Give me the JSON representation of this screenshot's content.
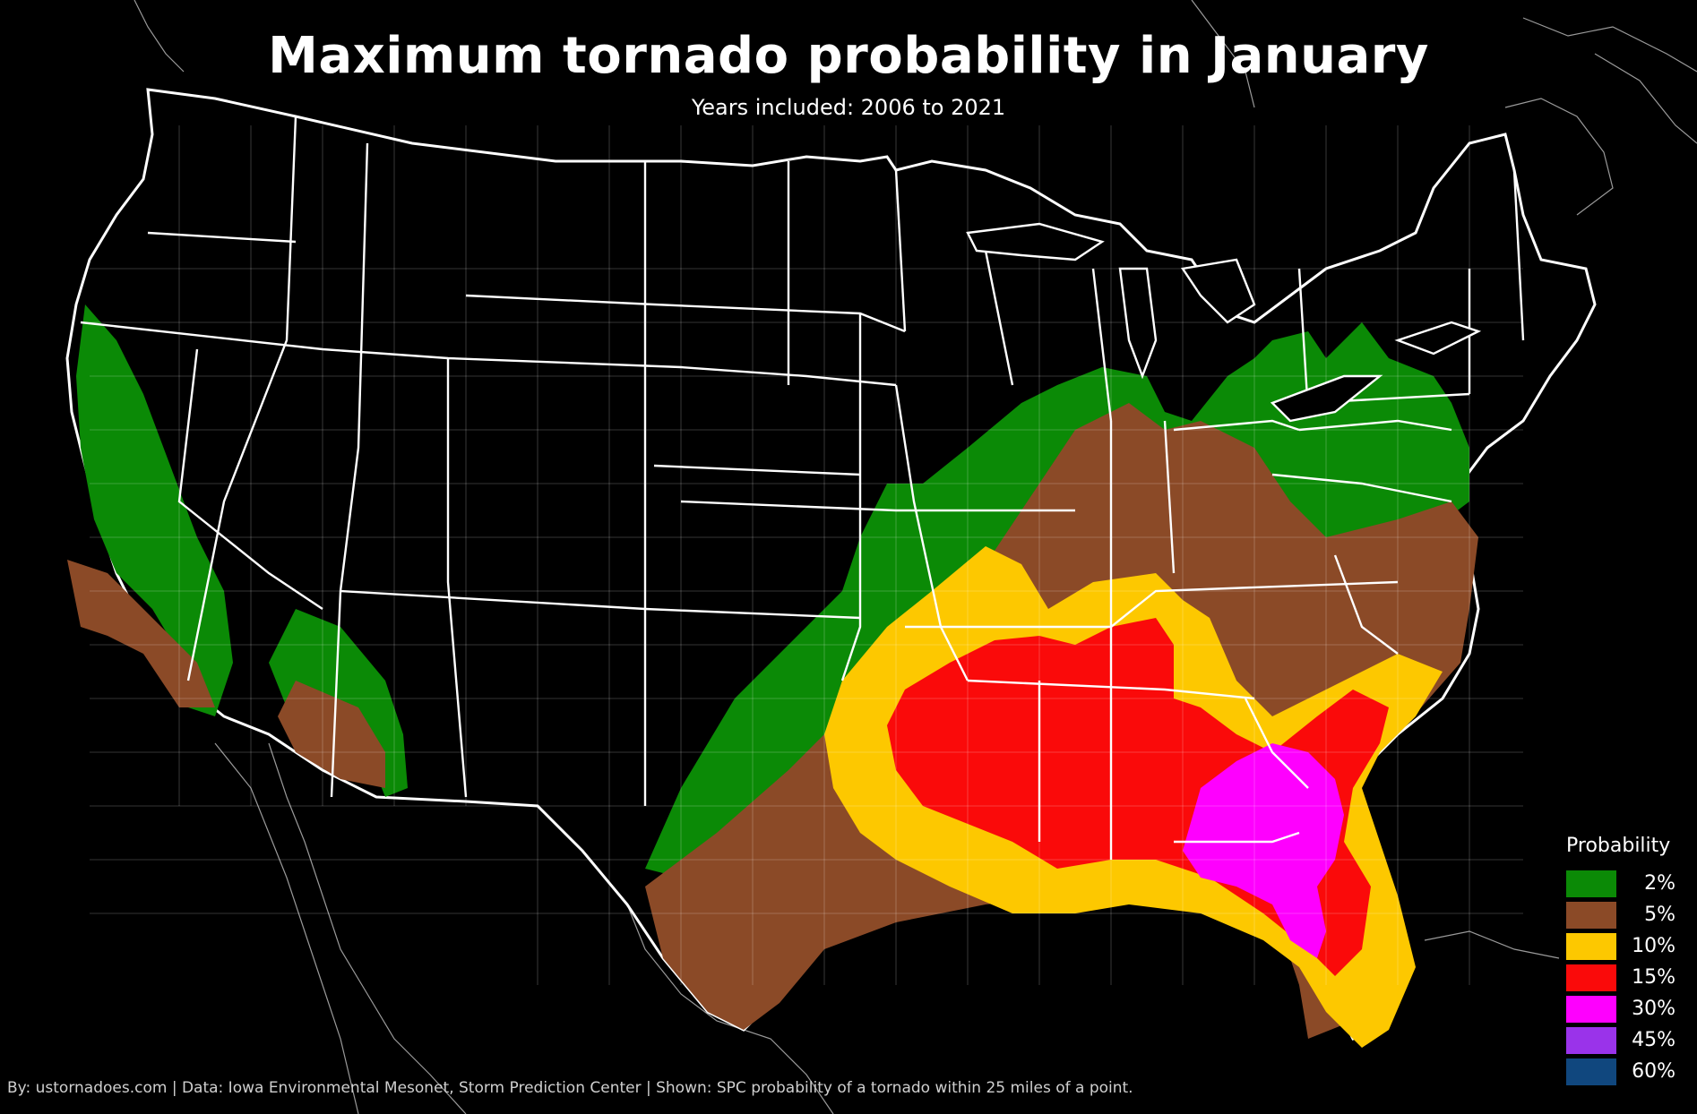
{
  "title": "Maximum tornado probability in January",
  "subtitle": "Years included: 2006 to 2021",
  "legend": {
    "title": "Probability",
    "items": [
      {
        "label": "2%",
        "color": "#0b8a06"
      },
      {
        "label": "5%",
        "color": "#8b4a27"
      },
      {
        "label": "10%",
        "color": "#fdc800"
      },
      {
        "label": "15%",
        "color": "#fa0a0a"
      },
      {
        "label": "30%",
        "color": "#fe00fe"
      },
      {
        "label": "45%",
        "color": "#9a33ea"
      },
      {
        "label": "60%",
        "color": "#10477e"
      }
    ]
  },
  "credit": "By: ustornadoes.com | Data: Iowa Environmental Mesonet, Storm Prediction Center | Shown: SPC probability of a tornado within 25 miles of a point."
}
